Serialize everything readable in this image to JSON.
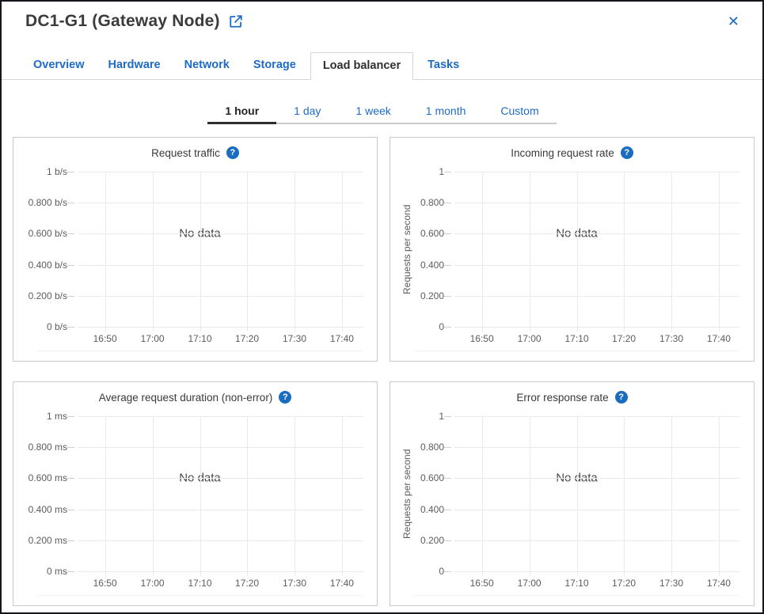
{
  "header": {
    "title": "DC1-G1 (Gateway Node)",
    "close_glyph": "✕"
  },
  "icons": {
    "help_glyph": "?"
  },
  "colors": {
    "link_blue": "#1e6bc5",
    "help_icon_blue": "#1a6dbe",
    "active_text": "#2f2f2f",
    "grid_line": "#eaeaea",
    "panel_border": "#c9c9c9"
  },
  "nav_tabs": [
    {
      "label": "Overview",
      "active": false
    },
    {
      "label": "Hardware",
      "active": false
    },
    {
      "label": "Network",
      "active": false
    },
    {
      "label": "Storage",
      "active": false
    },
    {
      "label": "Load balancer",
      "active": true
    },
    {
      "label": "Tasks",
      "active": false
    }
  ],
  "time_tabs": [
    {
      "label": "1 hour",
      "active": true
    },
    {
      "label": "1 day",
      "active": false
    },
    {
      "label": "1 week",
      "active": false
    },
    {
      "label": "1 month",
      "active": false
    },
    {
      "label": "Custom",
      "active": false
    }
  ],
  "chart_data": [
    {
      "type": "line",
      "title": "Request traffic",
      "x": [
        "16:50",
        "17:00",
        "17:10",
        "17:20",
        "17:30",
        "17:40"
      ],
      "xlabel": "",
      "ylabel": "",
      "y_tick_labels": [
        "0 b/s",
        "0.200 b/s",
        "0.400 b/s",
        "0.600 b/s",
        "0.800 b/s",
        "1 b/s"
      ],
      "ylim": [
        0,
        1
      ],
      "unit": "b/s",
      "series": [],
      "annotation": "No data",
      "grid": true,
      "legend": "none"
    },
    {
      "type": "line",
      "title": "Incoming request rate",
      "x": [
        "16:50",
        "17:00",
        "17:10",
        "17:20",
        "17:30",
        "17:40"
      ],
      "xlabel": "",
      "ylabel": "Requests per second",
      "y_tick_labels": [
        "0",
        "0.200",
        "0.400",
        "0.600",
        "0.800",
        "1"
      ],
      "ylim": [
        0,
        1
      ],
      "unit": "requests/s",
      "series": [],
      "annotation": "No data",
      "grid": true,
      "legend": "none"
    },
    {
      "type": "line",
      "title": "Average request duration (non-error)",
      "x": [
        "16:50",
        "17:00",
        "17:10",
        "17:20",
        "17:30",
        "17:40"
      ],
      "xlabel": "",
      "ylabel": "",
      "y_tick_labels": [
        "0 ms",
        "0.200 ms",
        "0.400 ms",
        "0.600 ms",
        "0.800 ms",
        "1 ms"
      ],
      "ylim": [
        0,
        1
      ],
      "unit": "ms",
      "series": [],
      "annotation": "No data",
      "grid": true,
      "legend": "none"
    },
    {
      "type": "line",
      "title": "Error response rate",
      "x": [
        "16:50",
        "17:00",
        "17:10",
        "17:20",
        "17:30",
        "17:40"
      ],
      "xlabel": "",
      "ylabel": "Requests per second",
      "y_tick_labels": [
        "0",
        "0.200",
        "0.400",
        "0.600",
        "0.800",
        "1"
      ],
      "ylim": [
        0,
        1
      ],
      "unit": "requests/s",
      "series": [],
      "annotation": "No data",
      "grid": true,
      "legend": "none"
    }
  ]
}
